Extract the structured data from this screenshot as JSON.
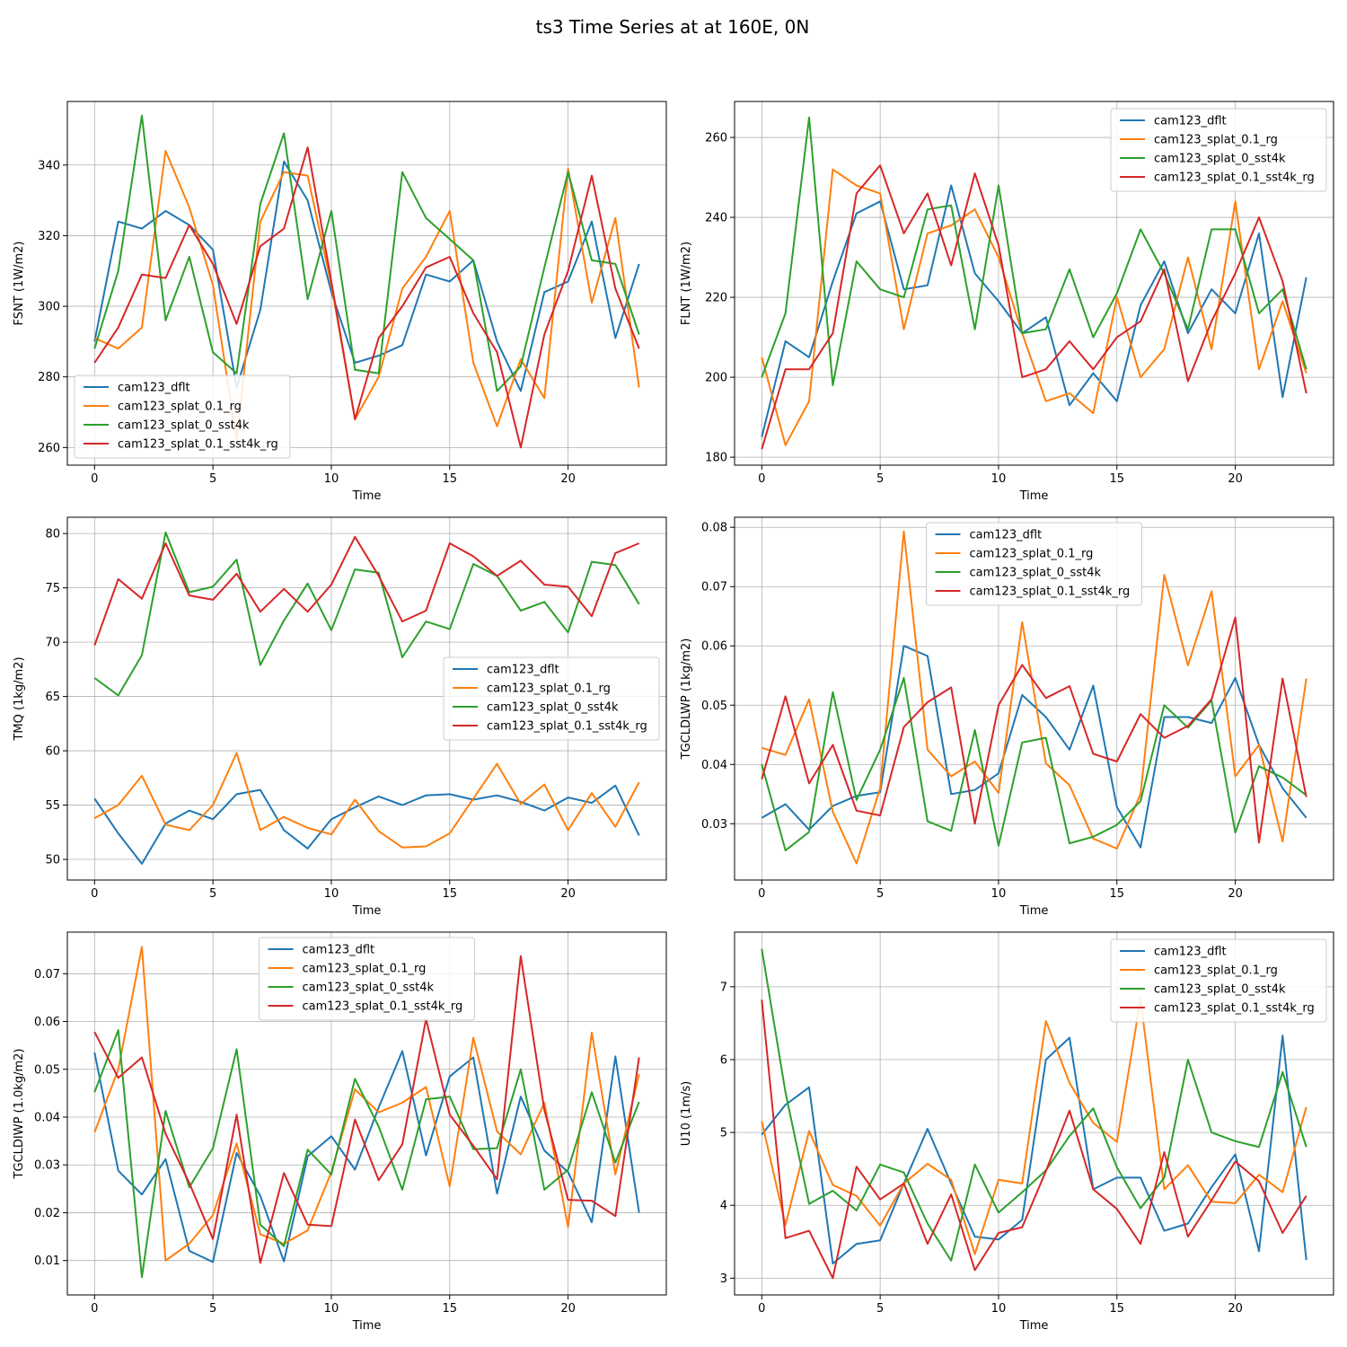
{
  "figure_title": "ts3 Time Series at at 160E, 0N",
  "colors": {
    "cam123_dflt": "#1f77b4",
    "cam123_splat_0.1_rg": "#ff7f0e",
    "cam123_splat_0_sst4k": "#2ca02c",
    "cam123_splat_0.1_sst4k_rg": "#d62728"
  },
  "chart_data": [
    {
      "type": "line",
      "title": "",
      "xlabel": "Time",
      "ylabel": "FSNT (1W/m2)",
      "xlim": [
        -1.15,
        24.15
      ],
      "ylim": [
        255,
        358
      ],
      "xticks": [
        0,
        5,
        10,
        15,
        20
      ],
      "yticks": [
        260,
        280,
        300,
        320,
        340
      ],
      "grid": true,
      "legend": "lower-left",
      "series": [
        {
          "name": "cam123_dflt",
          "values": [
            290,
            324,
            322,
            327,
            323,
            316,
            277,
            299,
            341,
            330,
            304,
            284,
            286,
            289,
            309,
            307,
            313,
            290,
            276,
            304,
            307,
            324,
            291,
            312
          ]
        },
        {
          "name": "cam123_splat_0.1_rg",
          "values": [
            291,
            288,
            294,
            344,
            328,
            306,
            262,
            324,
            338,
            337,
            306,
            268,
            280,
            305,
            314,
            327,
            284,
            266,
            285,
            274,
            339,
            301,
            325,
            277
          ]
        },
        {
          "name": "cam123_splat_0_sst4k",
          "values": [
            288,
            310,
            354,
            296,
            314,
            287,
            281,
            329,
            349,
            302,
            327,
            282,
            281,
            338,
            325,
            319,
            313,
            276,
            283,
            311,
            338,
            313,
            312,
            292
          ]
        },
        {
          "name": "cam123_splat_0.1_sst4k_rg",
          "values": [
            284,
            294,
            309,
            308,
            323,
            312,
            295,
            317,
            322,
            345,
            307,
            268,
            291,
            300,
            311,
            314,
            298,
            287,
            260,
            292,
            310,
            337,
            305,
            288
          ]
        }
      ]
    },
    {
      "type": "line",
      "title": "",
      "xlabel": "Time",
      "ylabel": "FLNT (1W/m2)",
      "xlim": [
        -1.15,
        24.15
      ],
      "ylim": [
        178,
        269
      ],
      "xticks": [
        0,
        5,
        10,
        15,
        20
      ],
      "yticks": [
        180,
        200,
        220,
        240,
        260
      ],
      "grid": true,
      "legend": "upper-right",
      "series": [
        {
          "name": "cam123_dflt",
          "values": [
            185,
            209,
            205,
            224,
            241,
            244,
            222,
            223,
            248,
            226,
            219,
            211,
            215,
            193,
            201,
            194,
            218,
            229,
            211,
            222,
            216,
            236,
            195,
            225
          ]
        },
        {
          "name": "cam123_splat_0.1_rg",
          "values": [
            205,
            183,
            194,
            252,
            248,
            246,
            212,
            236,
            238,
            242,
            230,
            211,
            194,
            196,
            191,
            220,
            200,
            207,
            230,
            207,
            244,
            202,
            219,
            201
          ]
        },
        {
          "name": "cam123_splat_0_sst4k",
          "values": [
            200,
            216,
            265,
            198,
            229,
            222,
            220,
            242,
            243,
            212,
            248,
            211,
            212,
            227,
            210,
            221,
            237,
            226,
            212,
            237,
            237,
            216,
            222,
            202
          ]
        },
        {
          "name": "cam123_splat_0.1_sst4k_rg",
          "values": [
            182,
            202,
            202,
            211,
            246,
            253,
            236,
            246,
            228,
            251,
            233,
            200,
            202,
            209,
            202,
            210,
            214,
            227,
            199,
            214,
            226,
            240,
            224,
            196
          ]
        }
      ]
    },
    {
      "type": "line",
      "title": "",
      "xlabel": "Time",
      "ylabel": "TMQ (1kg/m2)",
      "xlim": [
        -1.15,
        24.15
      ],
      "ylim": [
        48.1,
        81.5
      ],
      "xticks": [
        0,
        5,
        10,
        15,
        20
      ],
      "yticks": [
        50,
        55,
        60,
        65,
        70,
        75,
        80
      ],
      "grid": true,
      "legend": "center-right",
      "series": [
        {
          "name": "cam123_dflt",
          "values": [
            55.6,
            52.4,
            49.6,
            53.3,
            54.5,
            53.7,
            56.0,
            56.4,
            52.7,
            51.0,
            53.7,
            54.8,
            55.8,
            55.0,
            55.9,
            56.0,
            55.5,
            55.9,
            55.3,
            54.5,
            55.7,
            55.2,
            56.8,
            52.2
          ]
        },
        {
          "name": "cam123_splat_0.1_rg",
          "values": [
            53.8,
            55.0,
            57.7,
            53.2,
            52.7,
            55.0,
            59.8,
            52.7,
            53.9,
            52.9,
            52.3,
            55.5,
            52.6,
            51.1,
            51.2,
            52.4,
            55.6,
            58.8,
            55.1,
            56.9,
            52.7,
            56.1,
            53.0,
            57.1
          ]
        },
        {
          "name": "cam123_splat_0_sst4k",
          "values": [
            66.7,
            65.1,
            68.8,
            80.1,
            74.6,
            75.1,
            77.6,
            67.9,
            72.0,
            75.4,
            71.1,
            76.7,
            76.4,
            68.6,
            71.9,
            71.2,
            77.2,
            76.1,
            72.9,
            73.7,
            70.9,
            77.4,
            77.1,
            73.5
          ]
        },
        {
          "name": "cam123_splat_0.1_sst4k_rg",
          "values": [
            69.7,
            75.8,
            74.0,
            79.1,
            74.3,
            73.9,
            76.3,
            72.8,
            74.9,
            72.8,
            75.3,
            79.7,
            76.1,
            71.9,
            72.9,
            79.1,
            77.9,
            76.1,
            77.5,
            75.3,
            75.1,
            72.4,
            78.2,
            79.1
          ]
        }
      ]
    },
    {
      "type": "line",
      "title": "",
      "xlabel": "Time",
      "ylabel": "TGCLDLWP (1kg/m2)",
      "xlim": [
        -1.15,
        24.15
      ],
      "ylim": [
        0.0205,
        0.0817
      ],
      "xticks": [
        0,
        5,
        10,
        15,
        20
      ],
      "yticks": [
        0.03,
        0.04,
        0.05,
        0.06,
        0.07,
        0.08
      ],
      "grid": true,
      "legend": "upper-center",
      "series": [
        {
          "name": "cam123_dflt",
          "values": [
            0.031,
            0.0333,
            0.029,
            0.033,
            0.0347,
            0.0353,
            0.06,
            0.0583,
            0.035,
            0.0357,
            0.0385,
            0.0517,
            0.048,
            0.0425,
            0.0533,
            0.0328,
            0.026,
            0.048,
            0.048,
            0.047,
            0.0546,
            0.0433,
            0.036,
            0.031
          ]
        },
        {
          "name": "cam123_splat_0.1_rg",
          "values": [
            0.0428,
            0.0416,
            0.051,
            0.032,
            0.0233,
            0.036,
            0.0793,
            0.0425,
            0.038,
            0.0405,
            0.0352,
            0.064,
            0.0402,
            0.0365,
            0.0275,
            0.0258,
            0.035,
            0.072,
            0.0567,
            0.0692,
            0.038,
            0.0433,
            0.027,
            0.0545
          ]
        },
        {
          "name": "cam123_splat_0_sst4k",
          "values": [
            0.04,
            0.0255,
            0.0286,
            0.0522,
            0.034,
            0.0425,
            0.0546,
            0.0304,
            0.0288,
            0.0458,
            0.0263,
            0.0437,
            0.0445,
            0.0267,
            0.0278,
            0.0298,
            0.0338,
            0.05,
            0.0462,
            0.0508,
            0.0285,
            0.0397,
            0.0378,
            0.0348
          ]
        },
        {
          "name": "cam123_splat_0.1_sst4k_rg",
          "values": [
            0.0375,
            0.0515,
            0.0368,
            0.0433,
            0.0322,
            0.0314,
            0.0463,
            0.0505,
            0.053,
            0.03,
            0.05,
            0.0568,
            0.0512,
            0.0532,
            0.0418,
            0.0405,
            0.0485,
            0.0445,
            0.0465,
            0.051,
            0.0648,
            0.0268,
            0.0545,
            0.0345
          ]
        }
      ]
    },
    {
      "type": "line",
      "title": "",
      "xlabel": "Time",
      "ylabel": "TGCLDIWP (1.0kg/m2)",
      "xlim": [
        -1.15,
        24.15
      ],
      "ylim": [
        0.0028,
        0.0787
      ],
      "xticks": [
        0,
        5,
        10,
        15,
        20
      ],
      "yticks": [
        0.01,
        0.02,
        0.03,
        0.04,
        0.05,
        0.06,
        0.07
      ],
      "grid": true,
      "legend": "upper-center",
      "series": [
        {
          "name": "cam123_dflt",
          "values": [
            0.0535,
            0.0288,
            0.0238,
            0.0312,
            0.012,
            0.0097,
            0.0325,
            0.0235,
            0.0098,
            0.0318,
            0.036,
            0.029,
            0.042,
            0.0538,
            0.032,
            0.0485,
            0.0525,
            0.024,
            0.0443,
            0.033,
            0.0285,
            0.018,
            0.0527,
            0.02
          ]
        },
        {
          "name": "cam123_splat_0.1_rg",
          "values": [
            0.0368,
            0.05,
            0.0756,
            0.01,
            0.0135,
            0.0195,
            0.0345,
            0.0155,
            0.0135,
            0.0163,
            0.0285,
            0.0458,
            0.041,
            0.043,
            0.0463,
            0.0255,
            0.0566,
            0.037,
            0.0322,
            0.043,
            0.017,
            0.0577,
            0.028,
            0.049
          ]
        },
        {
          "name": "cam123_splat_0_sst4k",
          "values": [
            0.0452,
            0.0582,
            0.0065,
            0.0413,
            0.0253,
            0.0335,
            0.0542,
            0.0175,
            0.013,
            0.0332,
            0.028,
            0.048,
            0.038,
            0.0248,
            0.0437,
            0.0443,
            0.0333,
            0.0335,
            0.05,
            0.0248,
            0.029,
            0.0452,
            0.0305,
            0.0432
          ]
        },
        {
          "name": "cam123_splat_0.1_sst4k_rg",
          "values": [
            0.0578,
            0.0482,
            0.0525,
            0.0365,
            0.0262,
            0.0145,
            0.0405,
            0.0095,
            0.0283,
            0.0175,
            0.0172,
            0.0395,
            0.0268,
            0.0343,
            0.0605,
            0.0405,
            0.034,
            0.027,
            0.0737,
            0.0415,
            0.0227,
            0.0225,
            0.0193,
            0.0525
          ]
        }
      ]
    },
    {
      "type": "line",
      "title": "",
      "xlabel": "Time",
      "ylabel": "U10 (1m/s)",
      "xlim": [
        -1.15,
        24.15
      ],
      "ylim": [
        2.77,
        7.75
      ],
      "xticks": [
        0,
        5,
        10,
        15,
        20
      ],
      "yticks": [
        3,
        4,
        5,
        6,
        7
      ],
      "grid": true,
      "legend": "upper-right",
      "series": [
        {
          "name": "cam123_dflt",
          "values": [
            4.97,
            5.38,
            5.62,
            3.2,
            3.47,
            3.52,
            4.3,
            5.05,
            4.3,
            3.57,
            3.53,
            3.8,
            6.0,
            6.3,
            4.22,
            4.38,
            4.38,
            3.65,
            3.75,
            4.25,
            4.7,
            3.37,
            6.33,
            3.25
          ]
        },
        {
          "name": "cam123_splat_0.1_rg",
          "values": [
            5.15,
            3.73,
            5.02,
            4.28,
            4.13,
            3.72,
            4.3,
            4.57,
            4.35,
            3.33,
            4.35,
            4.3,
            6.53,
            5.68,
            5.13,
            4.87,
            6.83,
            4.22,
            4.55,
            4.05,
            4.03,
            4.42,
            4.18,
            5.35
          ]
        },
        {
          "name": "cam123_splat_0_sst4k",
          "values": [
            7.52,
            5.55,
            4.02,
            4.2,
            3.93,
            4.56,
            4.45,
            3.75,
            3.24,
            4.56,
            3.9,
            4.18,
            4.48,
            4.95,
            5.33,
            4.52,
            3.96,
            4.38,
            6.0,
            5.0,
            4.88,
            4.8,
            5.83,
            4.8
          ]
        },
        {
          "name": "cam123_splat_0.1_sst4k_rg",
          "values": [
            6.82,
            3.55,
            3.65,
            3.0,
            4.53,
            4.08,
            4.3,
            3.47,
            4.15,
            3.11,
            3.62,
            3.7,
            4.47,
            5.3,
            4.22,
            3.95,
            3.47,
            4.73,
            3.57,
            4.07,
            4.6,
            4.33,
            3.62,
            4.13
          ]
        }
      ]
    }
  ]
}
